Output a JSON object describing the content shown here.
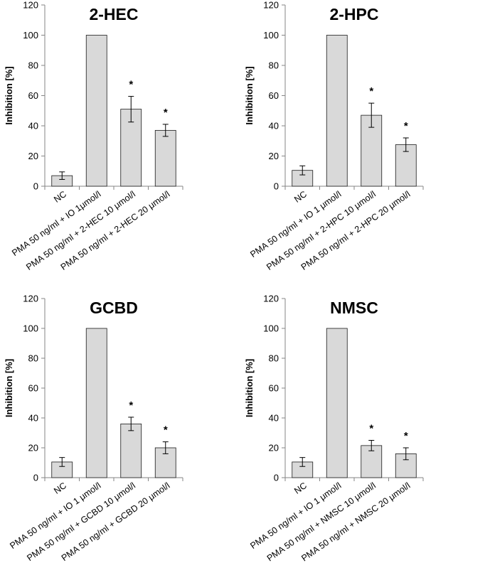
{
  "chart_data": [
    {
      "type": "bar",
      "title": "2-HEC",
      "ylabel": "Inhibition [%]",
      "ylim": [
        0,
        120
      ],
      "yticks": [
        0,
        20,
        40,
        60,
        80,
        100,
        120
      ],
      "grid": false,
      "bar_color": "#d9d9d9",
      "categories": [
        "NC",
        "PMA 50 ng/ml + IO 1μmol/l",
        "PMA 50 ng/ml + 2-HEC 10 μmol/l",
        "PMA 50 ng/ml + 2-HEC 20 μmol/l"
      ],
      "values": [
        7,
        100,
        51,
        37
      ],
      "errors": [
        2.5,
        0,
        8.5,
        4
      ],
      "annotations": [
        "",
        "",
        "*",
        "*"
      ]
    },
    {
      "type": "bar",
      "title": "2-HPC",
      "ylabel": "Inhibition [%]",
      "ylim": [
        0,
        120
      ],
      "yticks": [
        0,
        20,
        40,
        60,
        80,
        100,
        120
      ],
      "grid": false,
      "bar_color": "#d9d9d9",
      "categories": [
        "NC",
        "PMA 50 ng/ml + IO 1 μmol/l",
        "PMA 50 ng/ml + 2-HPC 10 μmol/l",
        "PMA 50 ng/ml + 2-HPC 20 μmol/l"
      ],
      "values": [
        10.5,
        100,
        47,
        27.5
      ],
      "errors": [
        3,
        0,
        8,
        4.5
      ],
      "annotations": [
        "",
        "",
        "*",
        "*"
      ]
    },
    {
      "type": "bar",
      "title": "GCBD",
      "ylabel": "Inhibition [%]",
      "ylim": [
        0,
        120
      ],
      "yticks": [
        0,
        20,
        40,
        60,
        80,
        100,
        120
      ],
      "grid": false,
      "bar_color": "#d9d9d9",
      "categories": [
        "NC",
        "PMA 50 ng/ml + IO 1 μmol/l",
        "PMA 50 ng/ml + GCBD 10 μmol/l",
        "PMA 50 ng/ml + GCBD 20 μmol/l"
      ],
      "values": [
        10.5,
        100,
        36,
        20
      ],
      "errors": [
        3,
        0,
        4.5,
        4
      ],
      "annotations": [
        "",
        "",
        "*",
        "*"
      ]
    },
    {
      "type": "bar",
      "title": "NMSC",
      "ylabel": "Inhibition [%]",
      "ylim": [
        0,
        120
      ],
      "yticks": [
        0,
        20,
        40,
        60,
        80,
        100,
        120
      ],
      "grid": false,
      "bar_color": "#d9d9d9",
      "categories": [
        "NC",
        "PMA 50 ng/ml + IO 1 μmol/l",
        "PMA 50 ng/ml + NMSC 10 μmol/l",
        "PMA 50 ng/ml + NMSC 20 μmol/l"
      ],
      "values": [
        10.5,
        100,
        21.5,
        16
      ],
      "errors": [
        3,
        0,
        3.5,
        4
      ],
      "annotations": [
        "",
        "",
        "*",
        "*"
      ]
    }
  ]
}
